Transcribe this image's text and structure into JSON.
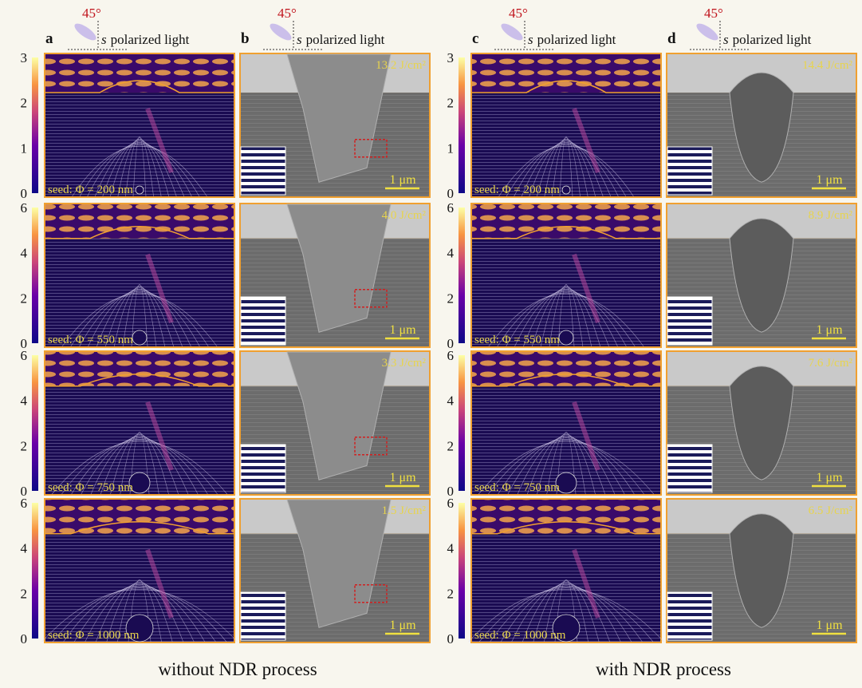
{
  "header": {
    "angle": "45°",
    "pol_symbol": "s",
    "light_text": "polarized light"
  },
  "panel_labels": [
    "a",
    "b",
    "c",
    "d"
  ],
  "colorbars": [
    {
      "ticks": [
        0,
        1,
        2,
        3
      ]
    },
    {
      "ticks": [
        0,
        2,
        4,
        6
      ]
    },
    {
      "ticks": [
        0,
        2,
        4,
        6
      ]
    },
    {
      "ticks": [
        0,
        2,
        4,
        6
      ]
    }
  ],
  "rows": [
    {
      "seed": "seed: Φ = 200 nm",
      "fluence_b": "13.2 J/cm²",
      "fluence_d": "14.4 J/cm²"
    },
    {
      "seed": "seed: Φ = 550 nm",
      "fluence_b": "4.0 J/cm²",
      "fluence_d": "8.9 J/cm²"
    },
    {
      "seed": "seed: Φ = 750 nm",
      "fluence_b": "3.3 J/cm²",
      "fluence_d": "7.6 J/cm²"
    },
    {
      "seed": "seed: Φ = 1000 nm",
      "fluence_b": "1.5 J/cm²",
      "fluence_d": "6.5 J/cm²"
    }
  ],
  "scale_bar": "1 μm",
  "captions": [
    "without NDR process",
    "with NDR process"
  ]
}
